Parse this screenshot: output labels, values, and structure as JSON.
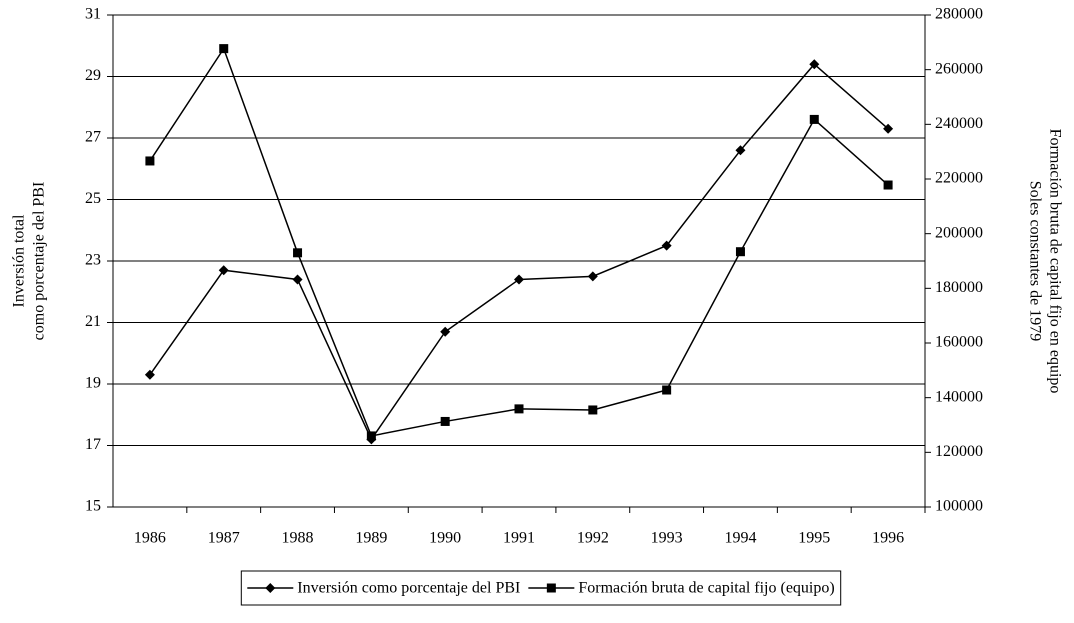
{
  "chart_data": {
    "type": "line",
    "y_label": [
      "Inversión total",
      "como porcentaje del PBI"
    ],
    "y2_label": [
      "Formación bruta de capital fijo en equipo",
      "Soles constantes de 1979"
    ],
    "categories": [
      "1986",
      "1987",
      "1988",
      "1989",
      "1990",
      "1991",
      "1992",
      "1993",
      "1994",
      "1995",
      "1996"
    ],
    "series": [
      {
        "name": "Inversión como porcentaje del PBI",
        "color": "#000000",
        "marker": "diamond",
        "values": [
          19.3,
          22.7,
          22.4,
          17.2,
          20.7,
          22.4,
          22.5,
          23.5,
          26.6,
          29.4,
          27.3
        ]
      },
      {
        "name": "Formación bruta de capital fijo (equipo)",
        "color": "#000000",
        "marker": "square",
        "axis": "y2",
        "values": [
          226600,
          267700,
          193000,
          126000,
          131300,
          135900,
          135500,
          142800,
          193400,
          241800,
          217800
        ]
      }
    ],
    "ylim": [
      15,
      31
    ],
    "yticks": [
      15,
      17,
      19,
      21,
      23,
      25,
      27,
      29,
      31
    ],
    "y2lim": [
      100000,
      280000
    ],
    "y2ticks": [
      100000,
      120000,
      140000,
      160000,
      180000,
      200000,
      220000,
      240000,
      260000,
      280000
    ],
    "grid": true,
    "legend": "bottom"
  }
}
